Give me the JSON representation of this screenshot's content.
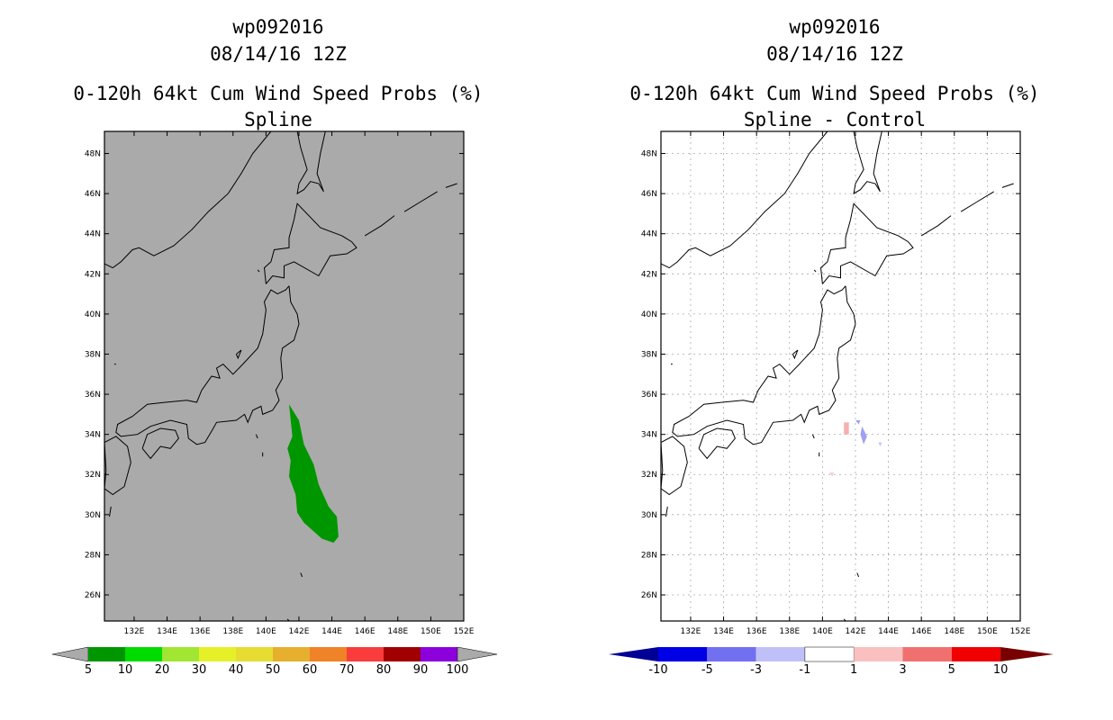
{
  "left": {
    "title_lines": [
      "wp092016",
      "08/14/16 12Z",
      "0-120h 64kt Cum Wind Speed Probs (%)",
      "Spline"
    ],
    "background_color": "#aaaaaa",
    "lat_labels": [
      "48N",
      "46N",
      "44N",
      "42N",
      "40N",
      "38N",
      "36N",
      "34N",
      "32N",
      "30N",
      "28N",
      "26N"
    ],
    "lon_labels": [
      "132E",
      "134E",
      "136E",
      "138E",
      "140E",
      "142E",
      "144E",
      "146E",
      "148E",
      "150E",
      "152E"
    ],
    "colorbar": {
      "colors": [
        "#009600",
        "#00dc00",
        "#a0e632",
        "#e6f028",
        "#e6dc32",
        "#e6af2d",
        "#f08228",
        "#fa3c3c",
        "#a00000",
        "#8c00dc"
      ],
      "end_color": "#aaaaaa",
      "labels": [
        "5",
        "10",
        "20",
        "30",
        "40",
        "50",
        "60",
        "70",
        "80",
        "90",
        "100"
      ]
    },
    "prob_fill_color": "#009600"
  },
  "right": {
    "title_lines": [
      "wp092016",
      "08/14/16 12Z",
      "0-120h 64kt Cum Wind Speed Probs (%)",
      "Spline - Control"
    ],
    "background_color": "#ffffff",
    "lat_labels": [
      "48N",
      "46N",
      "44N",
      "42N",
      "40N",
      "38N",
      "36N",
      "34N",
      "32N",
      "30N",
      "28N",
      "26N"
    ],
    "lon_labels": [
      "132E",
      "134E",
      "136E",
      "138E",
      "140E",
      "142E",
      "144E",
      "146E",
      "148E",
      "150E",
      "152E"
    ],
    "colorbar": {
      "colors": [
        "#0000e6",
        "#7070f0",
        "#c0c0f8",
        "#ffffff",
        "#fac0c0",
        "#f07070",
        "#f00000"
      ],
      "low_end_color": "#000096",
      "high_end_color": "#780000",
      "labels": [
        "-10",
        "-5",
        "-3",
        "-1",
        "1",
        "3",
        "5",
        "10"
      ]
    }
  }
}
